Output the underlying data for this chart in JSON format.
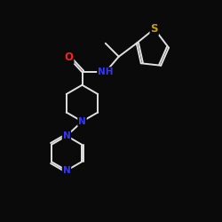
{
  "background_color": "#0a0a0a",
  "bond_color": "#e0e0e0",
  "bond_width": 1.4,
  "atom_colors": {
    "S": "#c8a000",
    "N": "#3535ff",
    "O": "#ff2020",
    "C": "#e0e0e0"
  },
  "font_size_atoms": 7.5,
  "fig_size": [
    2.5,
    2.5
  ],
  "dpi": 100,
  "xlim": [
    0,
    10
  ],
  "ylim": [
    0,
    10
  ]
}
